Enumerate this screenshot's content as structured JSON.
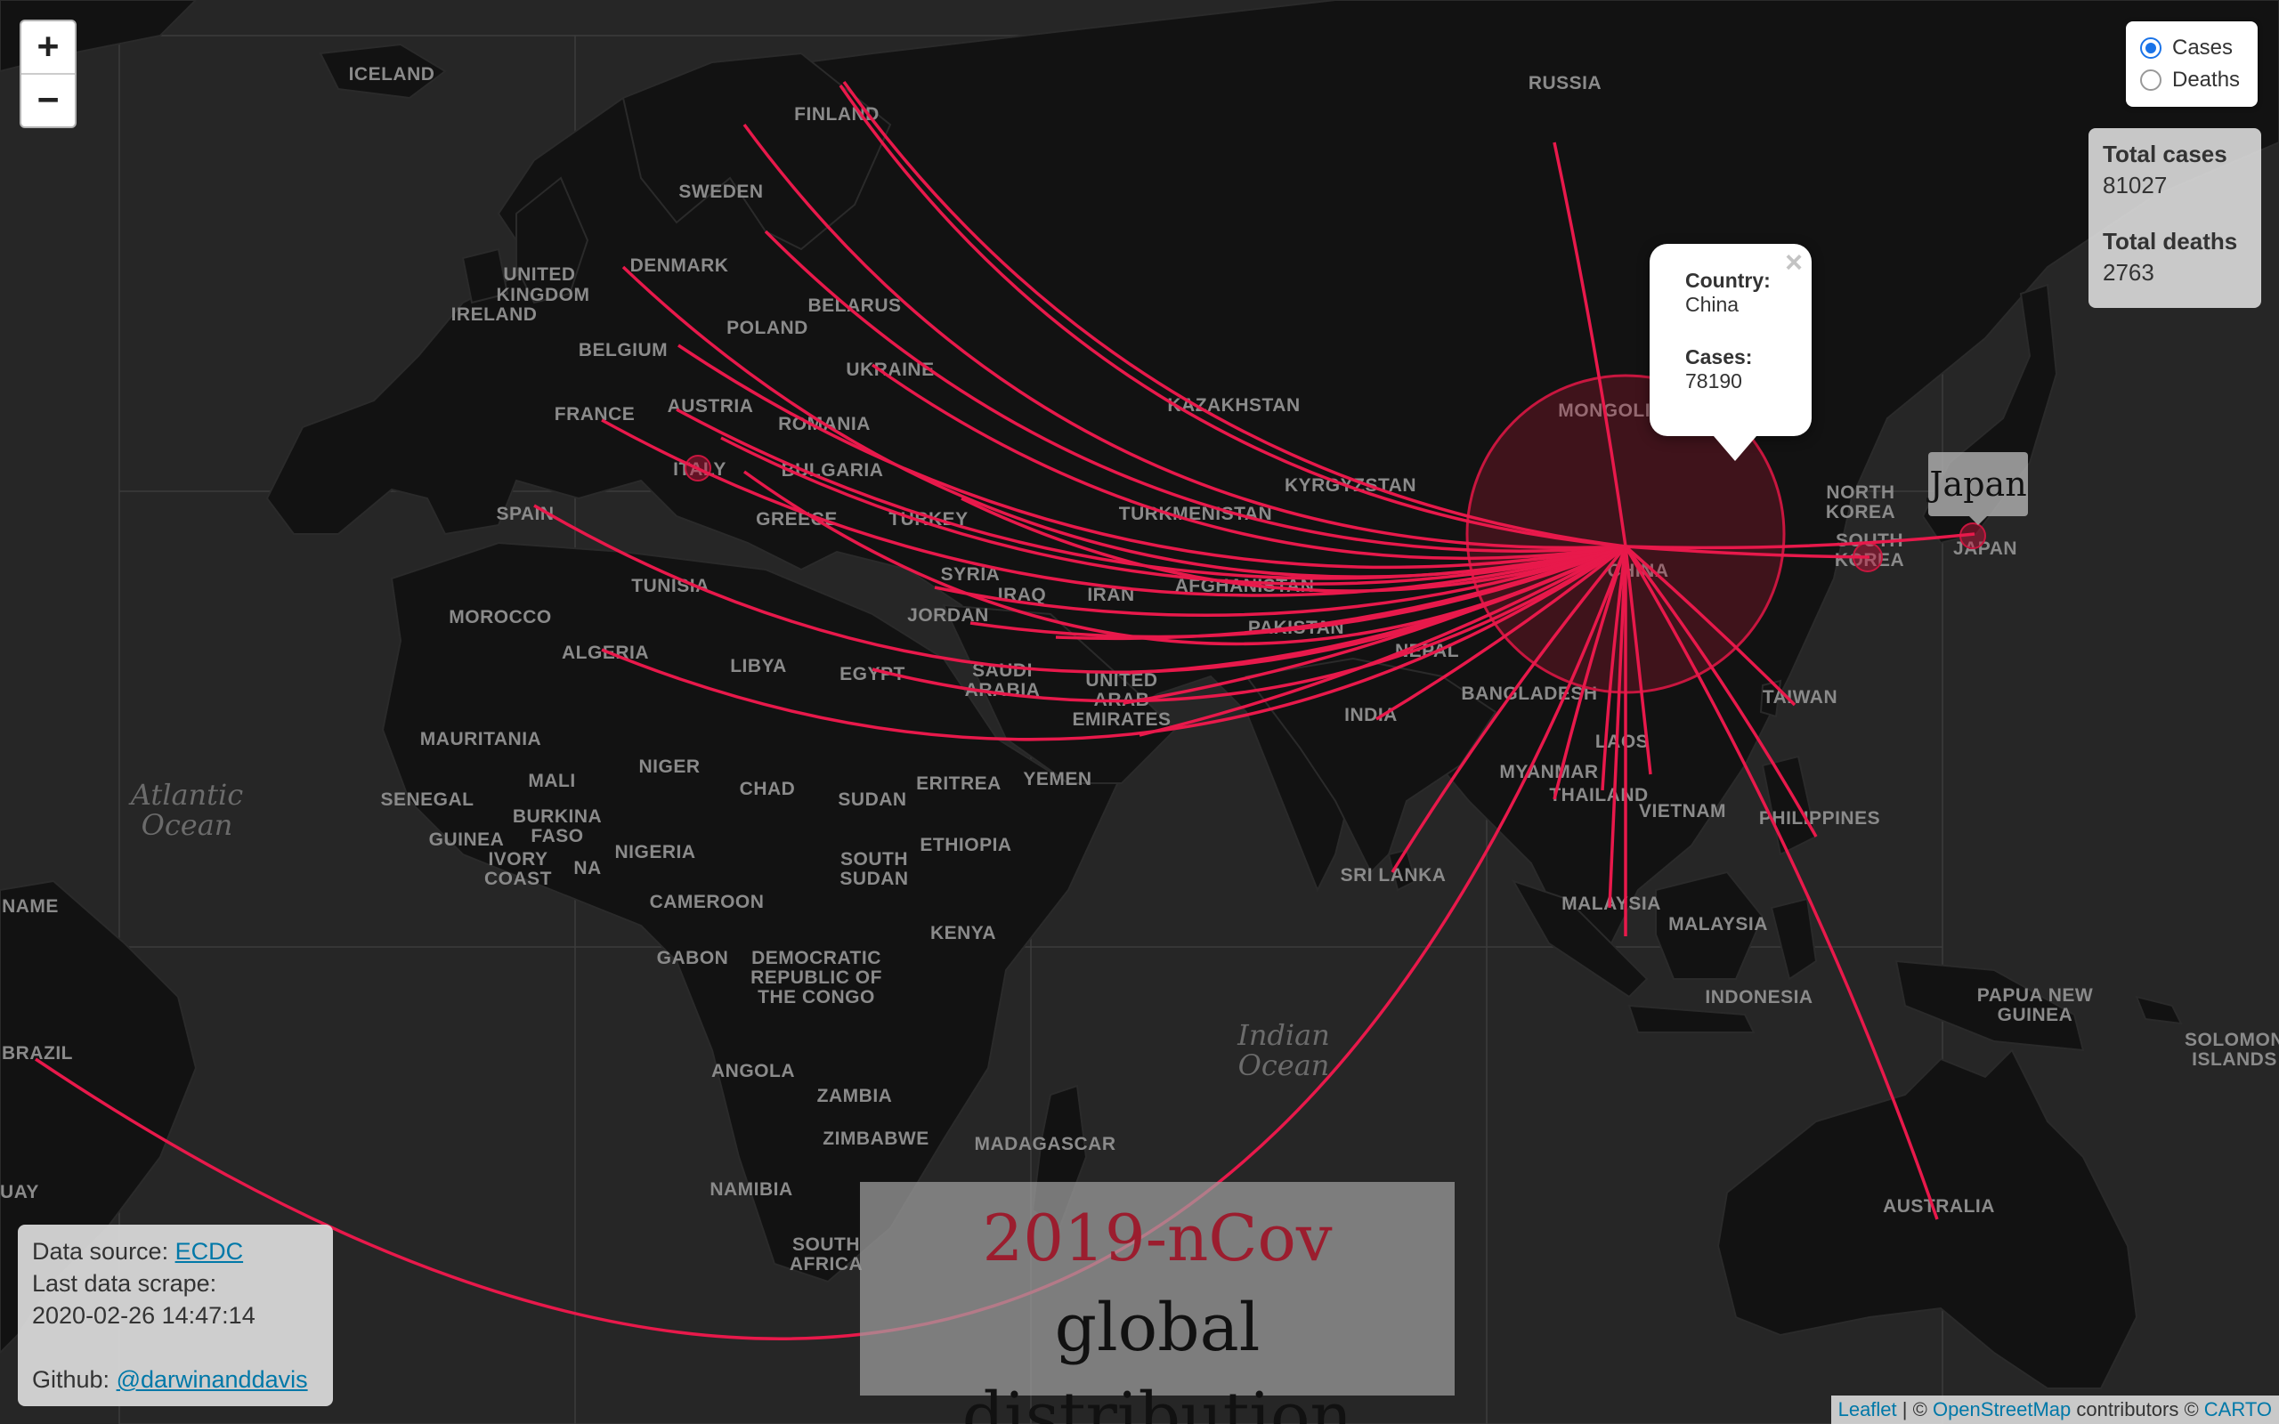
{
  "zoom": {
    "in_label": "+",
    "out_label": "−"
  },
  "layers": {
    "options": [
      {
        "label": "Cases",
        "checked": true
      },
      {
        "label": "Deaths",
        "checked": false
      }
    ]
  },
  "totals": {
    "cases_label": "Total cases",
    "cases_value": "81027",
    "deaths_label": "Total deaths",
    "deaths_value": "2763"
  },
  "popup": {
    "close": "×",
    "country_label": "Country:",
    "country_value": "China",
    "cases_label": "Cases:",
    "cases_value": "78190"
  },
  "tooltip": {
    "text": "Japan"
  },
  "title": {
    "line1": "2019-nCov",
    "line2": "global distribution"
  },
  "info": {
    "source_label": "Data source:",
    "source_link": "ECDC",
    "scrape_label": "Last data scrape:",
    "scrape_value": "2020-02-26 14:47:14",
    "github_label": "Github:",
    "github_link": "@darwinanddavis"
  },
  "attribution": {
    "leaflet": "Leaflet",
    "sep": "| ©",
    "osm": "OpenStreetMap",
    "contrib": "contributors ©",
    "carto": "CARTO"
  },
  "map": {
    "arc_color": "#e8194b",
    "countries": [
      "ICELAND",
      "RUSSIA",
      "FINLAND",
      "SWEDEN",
      "UNITED",
      "KINGDOM",
      "IRELAND",
      "DENMARK",
      "BELARUS",
      "POLAND",
      "BELGIUM",
      "UKRAINE",
      "FRANCE",
      "AUSTRIA",
      "ROMANIA",
      "KAZAKHSTAN",
      "ITALY",
      "BULGARIA",
      "SPAIN",
      "GREECE",
      "TURKEY",
      "KYRGYZSTAN",
      "TURKMENISTAN",
      "MONGOLIA",
      "NORTH",
      "KOREA",
      "SOUTH",
      "KOREA",
      "JAPAN",
      "MOROCCO",
      "TUNISIA",
      "SYRIA",
      "IRAQ",
      "IRAN",
      "AFGHANISTAN",
      "JORDAN",
      "PAKISTAN",
      "CHINA",
      "ALGERIA",
      "LIBYA",
      "EGYPT",
      "SAUDI",
      "ARABIA",
      "UNITED",
      "ARAB",
      "EMIRATES",
      "NEPAL",
      "INDIA",
      "BANGLADESH",
      "TAIWAN",
      "MAURITANIA",
      "MALI",
      "NIGER",
      "CHAD",
      "SUDAN",
      "ERITREA",
      "YEMEN",
      "MYANMAR",
      "LAOS",
      "THAILAND",
      "VIETNAM",
      "PHILIPPINES",
      "SENEGAL",
      "BURKINA",
      "FASO",
      "GUINEA",
      "IVORY",
      "COAST",
      "NIGERIA",
      "ETHIOPIA",
      "SOUTH",
      "SUDAN",
      "SRI LANKA",
      "CAMEROON",
      "KENYA",
      "MALAYSIA",
      "MALAYSIA",
      "NAME",
      "BRAZIL",
      "GABON",
      "DEMOCRATIC",
      "REPUBLIC OF",
      "THE CONGO",
      "INDONESIA",
      "PAPUA NEW",
      "GUINEA",
      "SOLOMON",
      "ISLANDS",
      "ANGOLA",
      "ZAMBIA",
      "ZIMBABWE",
      "NAMIBIA",
      "MADAGASCAR",
      "SOUTH",
      "AFRICA",
      "AUSTRALIA",
      "UAY",
      "NA"
    ],
    "oceans": [
      "Atlantic",
      "Ocean",
      "Indian",
      "Ocean"
    ]
  }
}
